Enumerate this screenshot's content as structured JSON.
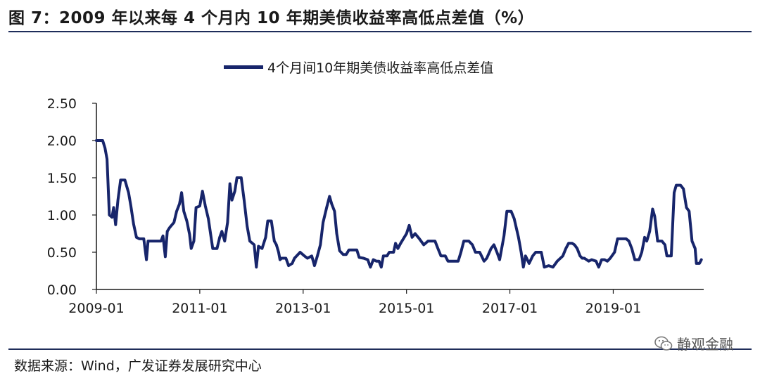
{
  "header": {
    "title": "图 7：2009 年以来每 4 个月内 10 年期美债收益率高低点差值（%）"
  },
  "footer": {
    "source": "数据来源：Wind，广发证券发展研究中心",
    "watermark": "静观金融"
  },
  "colors": {
    "series": "#17256b",
    "axis": "#1a1a1a",
    "rule": "#1f2d5a"
  },
  "chart_data": {
    "type": "line",
    "title": "",
    "xlabel": "",
    "ylabel": "",
    "ylim": [
      0,
      2.5
    ],
    "y_ticks": [
      "0.00",
      "0.50",
      "1.00",
      "1.50",
      "2.00",
      "2.50"
    ],
    "x_ticks": [
      "2009-01",
      "2011-01",
      "2013-01",
      "2015-01",
      "2017-01",
      "2019-01"
    ],
    "xlim": [
      "2009-01",
      "2020-10"
    ],
    "legend": "top-center",
    "grid": false,
    "series": [
      {
        "name": "4个月间10年期美债收益率高低点差值",
        "points": [
          [
            "2009-01-01",
            2.0
          ],
          [
            "2009-02-15",
            2.0
          ],
          [
            "2009-03-01",
            1.9
          ],
          [
            "2009-03-15",
            1.75
          ],
          [
            "2009-04-01",
            1.0
          ],
          [
            "2009-04-20",
            0.97
          ],
          [
            "2009-05-01",
            1.1
          ],
          [
            "2009-05-15",
            0.87
          ],
          [
            "2009-06-01",
            1.2
          ],
          [
            "2009-06-20",
            1.47
          ],
          [
            "2009-07-20",
            1.47
          ],
          [
            "2009-08-15",
            1.3
          ],
          [
            "2009-09-01",
            1.12
          ],
          [
            "2009-09-20",
            0.88
          ],
          [
            "2009-10-10",
            0.7
          ],
          [
            "2009-11-01",
            0.68
          ],
          [
            "2009-12-01",
            0.68
          ],
          [
            "2009-12-20",
            0.4
          ],
          [
            "2010-01-01",
            0.65
          ],
          [
            "2010-03-01",
            0.65
          ],
          [
            "2010-04-01",
            0.65
          ],
          [
            "2010-04-15",
            0.72
          ],
          [
            "2010-05-01",
            0.44
          ],
          [
            "2010-05-15",
            0.78
          ],
          [
            "2010-06-01",
            0.83
          ],
          [
            "2010-07-01",
            0.9
          ],
          [
            "2010-07-20",
            1.05
          ],
          [
            "2010-08-10",
            1.15
          ],
          [
            "2010-08-25",
            1.3
          ],
          [
            "2010-09-10",
            1.05
          ],
          [
            "2010-10-01",
            0.92
          ],
          [
            "2010-10-20",
            0.74
          ],
          [
            "2010-11-01",
            0.55
          ],
          [
            "2010-11-20",
            0.65
          ],
          [
            "2010-12-05",
            1.1
          ],
          [
            "2011-01-01",
            1.12
          ],
          [
            "2011-01-20",
            1.32
          ],
          [
            "2011-02-10",
            1.12
          ],
          [
            "2011-03-01",
            0.95
          ],
          [
            "2011-04-01",
            0.55
          ],
          [
            "2011-05-01",
            0.55
          ],
          [
            "2011-05-20",
            0.7
          ],
          [
            "2011-06-05",
            0.78
          ],
          [
            "2011-06-25",
            0.65
          ],
          [
            "2011-07-15",
            0.9
          ],
          [
            "2011-08-01",
            1.42
          ],
          [
            "2011-08-15",
            1.2
          ],
          [
            "2011-09-05",
            1.32
          ],
          [
            "2011-09-20",
            1.5
          ],
          [
            "2011-10-20",
            1.5
          ],
          [
            "2011-11-10",
            1.2
          ],
          [
            "2011-12-01",
            0.85
          ],
          [
            "2011-12-20",
            0.65
          ],
          [
            "2012-01-20",
            0.6
          ],
          [
            "2012-02-05",
            0.3
          ],
          [
            "2012-02-20",
            0.58
          ],
          [
            "2012-03-15",
            0.55
          ],
          [
            "2012-04-10",
            0.7
          ],
          [
            "2012-04-25",
            0.92
          ],
          [
            "2012-05-20",
            0.92
          ],
          [
            "2012-06-10",
            0.65
          ],
          [
            "2012-06-25",
            0.6
          ],
          [
            "2012-07-10",
            0.5
          ],
          [
            "2012-07-20",
            0.4
          ],
          [
            "2012-08-01",
            0.42
          ],
          [
            "2012-09-01",
            0.42
          ],
          [
            "2012-09-20",
            0.32
          ],
          [
            "2012-10-15",
            0.35
          ],
          [
            "2012-11-01",
            0.42
          ],
          [
            "2012-12-10",
            0.5
          ],
          [
            "2013-01-10",
            0.45
          ],
          [
            "2013-02-01",
            0.42
          ],
          [
            "2013-03-01",
            0.45
          ],
          [
            "2013-03-20",
            0.32
          ],
          [
            "2013-04-10",
            0.45
          ],
          [
            "2013-05-01",
            0.6
          ],
          [
            "2013-05-20",
            0.9
          ],
          [
            "2013-06-15",
            1.1
          ],
          [
            "2013-07-05",
            1.25
          ],
          [
            "2013-07-20",
            1.15
          ],
          [
            "2013-08-10",
            1.05
          ],
          [
            "2013-08-25",
            0.75
          ],
          [
            "2013-09-15",
            0.52
          ],
          [
            "2013-10-10",
            0.47
          ],
          [
            "2013-11-01",
            0.47
          ],
          [
            "2013-11-20",
            0.53
          ],
          [
            "2014-01-15",
            0.53
          ],
          [
            "2014-02-01",
            0.43
          ],
          [
            "2014-03-01",
            0.42
          ],
          [
            "2014-04-01",
            0.4
          ],
          [
            "2014-04-20",
            0.3
          ],
          [
            "2014-05-10",
            0.4
          ],
          [
            "2014-06-01",
            0.38
          ],
          [
            "2014-06-20",
            0.38
          ],
          [
            "2014-07-05",
            0.3
          ],
          [
            "2014-07-20",
            0.45
          ],
          [
            "2014-08-15",
            0.45
          ],
          [
            "2014-09-01",
            0.5
          ],
          [
            "2014-10-01",
            0.5
          ],
          [
            "2014-10-15",
            0.62
          ],
          [
            "2014-11-01",
            0.55
          ],
          [
            "2014-11-20",
            0.62
          ],
          [
            "2015-01-01",
            0.75
          ],
          [
            "2015-01-20",
            0.86
          ],
          [
            "2015-02-10",
            0.7
          ],
          [
            "2015-03-01",
            0.75
          ],
          [
            "2015-04-01",
            0.68
          ],
          [
            "2015-05-01",
            0.6
          ],
          [
            "2015-06-01",
            0.65
          ],
          [
            "2015-07-20",
            0.65
          ],
          [
            "2015-08-10",
            0.55
          ],
          [
            "2015-09-01",
            0.45
          ],
          [
            "2015-10-01",
            0.45
          ],
          [
            "2015-10-20",
            0.38
          ],
          [
            "2015-11-20",
            0.38
          ],
          [
            "2016-01-01",
            0.38
          ],
          [
            "2016-01-20",
            0.5
          ],
          [
            "2016-02-10",
            0.65
          ],
          [
            "2016-03-15",
            0.65
          ],
          [
            "2016-04-10",
            0.6
          ],
          [
            "2016-05-01",
            0.5
          ],
          [
            "2016-06-01",
            0.5
          ],
          [
            "2016-07-01",
            0.38
          ],
          [
            "2016-07-20",
            0.42
          ],
          [
            "2016-08-20",
            0.55
          ],
          [
            "2016-09-10",
            0.6
          ],
          [
            "2016-10-01",
            0.5
          ],
          [
            "2016-10-20",
            0.4
          ],
          [
            "2016-11-20",
            0.72
          ],
          [
            "2016-12-10",
            1.05
          ],
          [
            "2017-01-10",
            1.05
          ],
          [
            "2017-02-01",
            0.95
          ],
          [
            "2017-03-01",
            0.7
          ],
          [
            "2017-03-20",
            0.5
          ],
          [
            "2017-04-05",
            0.3
          ],
          [
            "2017-04-20",
            0.45
          ],
          [
            "2017-05-15",
            0.35
          ],
          [
            "2017-06-10",
            0.45
          ],
          [
            "2017-07-01",
            0.5
          ],
          [
            "2017-08-10",
            0.5
          ],
          [
            "2017-09-01",
            0.3
          ],
          [
            "2017-10-01",
            0.32
          ],
          [
            "2017-11-01",
            0.3
          ],
          [
            "2017-12-01",
            0.38
          ],
          [
            "2018-01-10",
            0.45
          ],
          [
            "2018-02-01",
            0.55
          ],
          [
            "2018-02-20",
            0.62
          ],
          [
            "2018-03-15",
            0.62
          ],
          [
            "2018-04-01",
            0.6
          ],
          [
            "2018-04-20",
            0.55
          ],
          [
            "2018-05-10",
            0.45
          ],
          [
            "2018-05-25",
            0.42
          ],
          [
            "2018-06-10",
            0.42
          ],
          [
            "2018-07-10",
            0.38
          ],
          [
            "2018-08-01",
            0.4
          ],
          [
            "2018-09-01",
            0.38
          ],
          [
            "2018-09-20",
            0.3
          ],
          [
            "2018-10-10",
            0.4
          ],
          [
            "2018-11-01",
            0.4
          ],
          [
            "2018-11-20",
            0.38
          ],
          [
            "2018-12-10",
            0.42
          ],
          [
            "2019-01-10",
            0.5
          ],
          [
            "2019-02-01",
            0.68
          ],
          [
            "2019-04-01",
            0.68
          ],
          [
            "2019-04-20",
            0.65
          ],
          [
            "2019-05-10",
            0.55
          ],
          [
            "2019-06-01",
            0.4
          ],
          [
            "2019-07-01",
            0.4
          ],
          [
            "2019-07-20",
            0.5
          ],
          [
            "2019-08-10",
            0.7
          ],
          [
            "2019-08-25",
            0.65
          ],
          [
            "2019-09-15",
            0.78
          ],
          [
            "2019-10-05",
            1.08
          ],
          [
            "2019-10-20",
            0.98
          ],
          [
            "2019-11-10",
            0.65
          ],
          [
            "2019-12-10",
            0.65
          ],
          [
            "2020-01-01",
            0.6
          ],
          [
            "2020-01-15",
            0.45
          ],
          [
            "2020-02-15",
            0.45
          ],
          [
            "2020-03-05",
            1.3
          ],
          [
            "2020-03-20",
            1.4
          ],
          [
            "2020-04-20",
            1.4
          ],
          [
            "2020-05-10",
            1.35
          ],
          [
            "2020-06-01",
            1.1
          ],
          [
            "2020-06-20",
            1.05
          ],
          [
            "2020-07-10",
            0.65
          ],
          [
            "2020-08-01",
            0.55
          ],
          [
            "2020-08-10",
            0.35
          ],
          [
            "2020-09-01",
            0.35
          ],
          [
            "2020-09-15",
            0.4
          ]
        ]
      }
    ]
  }
}
